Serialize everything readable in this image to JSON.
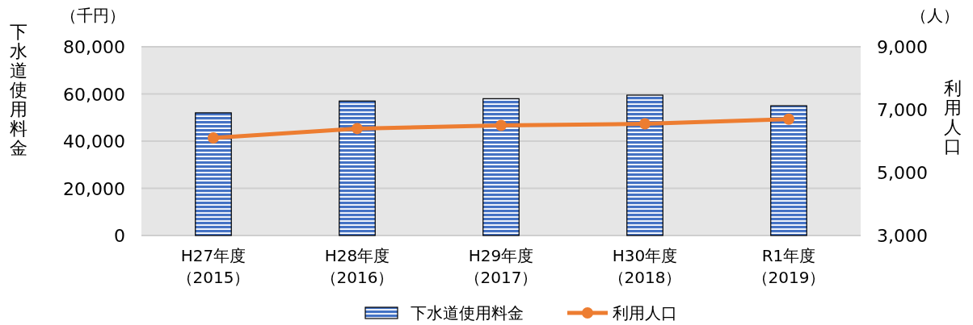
{
  "chart_data": {
    "type": "bar",
    "categories": [
      "H27年度（2015）",
      "H28年度（2016）",
      "H29年度（2017）",
      "H30年度（2018）",
      "R1年度（2019）"
    ],
    "series": [
      {
        "name": "下水道使用料金",
        "color": "#4472c4",
        "values": [
          52000,
          57000,
          58000,
          59500,
          55000
        ]
      },
      {
        "name": "利用人口",
        "type": "line",
        "axis": "y2",
        "color": "#ed7d31",
        "marker": "circle",
        "values": [
          6100,
          6400,
          6500,
          6550,
          6700
        ]
      }
    ],
    "ylabel": "下水道使用料金",
    "y2label": "利用人口",
    "annotations": [
      "（千円）",
      "（人）"
    ],
    "ylim": [
      0,
      80000
    ],
    "yticks": [
      {
        "value": 0,
        "label": "0"
      },
      {
        "value": 20000,
        "label": "20,000"
      },
      {
        "value": 40000,
        "label": "40,000"
      },
      {
        "value": 60000,
        "label": "60,000"
      },
      {
        "value": 80000,
        "label": "80,000"
      }
    ],
    "y2lim": [
      3000,
      9000
    ],
    "y2ticks": [
      {
        "value": 3000,
        "label": "3,000"
      },
      {
        "value": 5000,
        "label": "5,000"
      },
      {
        "value": 7000,
        "label": "7,000"
      },
      {
        "value": 9000,
        "label": "9,000"
      }
    ],
    "grid": "y",
    "legend": "bottom"
  }
}
